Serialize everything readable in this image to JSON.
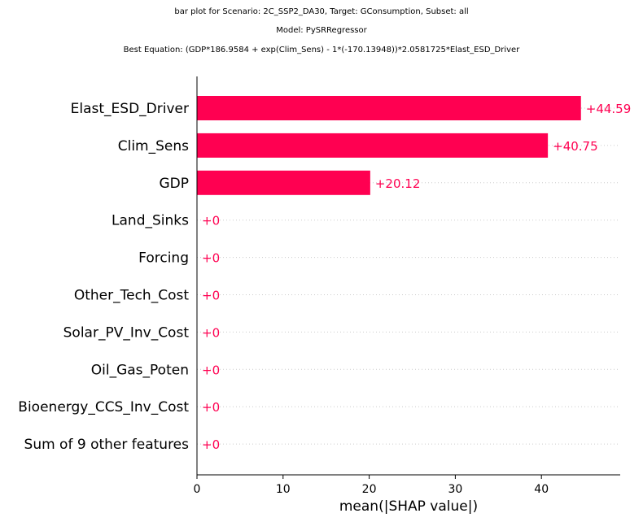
{
  "titles": {
    "line1": "bar plot for Scenario: 2C_SSP2_DA30, Target: GConsumption, Subset: all",
    "line2": "Model: PySRRegressor",
    "line3": "Best Equation: (GDP*186.9584 + exp(Clim_Sens) - 1*(-170.13948))*2.0581725*Elast_ESD_Driver"
  },
  "chart_data": {
    "type": "bar",
    "orientation": "horizontal",
    "categories": [
      "Elast_ESD_Driver",
      "Clim_Sens",
      "GDP",
      "Land_Sinks",
      "Forcing",
      "Other_Tech_Cost",
      "Solar_PV_Inv_Cost",
      "Oil_Gas_Poten",
      "Bioenergy_CCS_Inv_Cost",
      "Sum of 9 other features"
    ],
    "values": [
      44.59,
      40.75,
      20.12,
      0,
      0,
      0,
      0,
      0,
      0,
      0
    ],
    "value_labels": [
      "+44.59",
      "+40.75",
      "+20.12",
      "+0",
      "+0",
      "+0",
      "+0",
      "+0",
      "+0",
      "+0"
    ],
    "xlabel": "mean(|SHAP value|)",
    "ylabel": "",
    "xlim": [
      0,
      49
    ],
    "xticks": [
      0,
      10,
      20,
      30,
      40
    ],
    "bar_color": "#ff0051",
    "grid": "dotted horizontal guide lines per row"
  }
}
